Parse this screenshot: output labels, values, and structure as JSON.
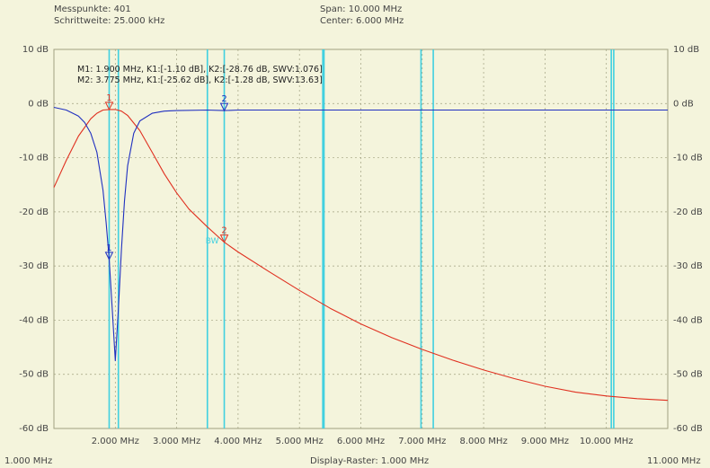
{
  "header": {
    "messpunkte_label": "Messpunkte:",
    "messpunkte_value": "401",
    "schrittweite_label": "Schrittweite:",
    "schrittweite_value": "25.000 kHz",
    "span_label": "Span:",
    "span_value": "10.000 MHz",
    "center_label": "Center:",
    "center_value": "6.000 MHz"
  },
  "bottom": {
    "start": "1.000 MHz",
    "raster": "Display-Raster: 1.000 MHz",
    "stop": "11.000 MHz"
  },
  "markers_info": [
    "M1: 1.900 MHz, K1:[-1.10 dB], K2:[-28.76 dB, SWV:1.076]",
    "M2: 3.775 MHz, K1:[-25.62 dB], K2:[-1.28 dB, SWV:13.63]"
  ],
  "colors": {
    "background": "#f4f4dc",
    "grid": "#a0a080",
    "k1": "#e03020",
    "k2": "#2030c0",
    "cyan": "#40d0e0"
  },
  "chart_data": {
    "type": "line",
    "xlim": [
      1.0,
      11.0
    ],
    "ylim": [
      -60,
      10
    ],
    "x_ticks": [
      2,
      3,
      4,
      5,
      6,
      7,
      8,
      9,
      10
    ],
    "x_tick_labels": [
      "2.000 MHz",
      "3.000 MHz",
      "4.000 MHz",
      "5.000 MHz",
      "6.000 MHz",
      "7.000 MHz",
      "8.000 MHz",
      "9.000 MHz",
      "10.000 MHz"
    ],
    "y_ticks": [
      10,
      0,
      -10,
      -20,
      -30,
      -40,
      -50,
      -60
    ],
    "y_tick_labels": [
      "10 dB",
      "0 dB",
      "-10 dB",
      "-20 dB",
      "-30 dB",
      "-40 dB",
      "-50 dB",
      "-60 dB"
    ],
    "grid": true,
    "series": [
      {
        "color": "#e03020",
        "x": [
          1.0,
          1.2,
          1.4,
          1.6,
          1.7,
          1.8,
          1.9,
          2.0,
          2.1,
          2.2,
          2.4,
          2.6,
          2.8,
          3.0,
          3.2,
          3.5,
          3.775,
          4.0,
          4.5,
          5.0,
          5.5,
          6.0,
          6.5,
          7.0,
          7.5,
          8.0,
          8.5,
          9.0,
          9.5,
          10.0,
          10.5,
          11.0
        ],
        "y": [
          -15.5,
          -10.5,
          -6.0,
          -2.8,
          -1.8,
          -1.2,
          -1.1,
          -1.1,
          -1.4,
          -2.2,
          -5.0,
          -9.0,
          -13.0,
          -16.5,
          -19.5,
          -22.8,
          -25.6,
          -27.4,
          -31.0,
          -34.5,
          -37.8,
          -40.7,
          -43.2,
          -45.4,
          -47.4,
          -49.2,
          -50.8,
          -52.2,
          -53.3,
          -54.0,
          -54.5,
          -54.8
        ]
      },
      {
        "color": "#2030c0",
        "x": [
          1.0,
          1.2,
          1.4,
          1.5,
          1.6,
          1.7,
          1.8,
          1.85,
          1.9,
          1.95,
          2.0,
          2.05,
          2.1,
          2.15,
          2.2,
          2.3,
          2.4,
          2.6,
          2.8,
          3.0,
          3.5,
          3.775,
          4.0,
          5.0,
          6.0,
          7.0,
          8.0,
          9.0,
          10.0,
          11.0
        ],
        "y": [
          -0.7,
          -1.2,
          -2.3,
          -3.5,
          -5.5,
          -9.0,
          -16.0,
          -22.0,
          -28.8,
          -38.0,
          -47.5,
          -38.0,
          -27.0,
          -18.0,
          -11.5,
          -5.5,
          -3.2,
          -1.8,
          -1.4,
          -1.3,
          -1.2,
          -1.3,
          -1.2,
          -1.2,
          -1.2,
          -1.2,
          -1.2,
          -1.2,
          -1.2,
          -1.2
        ]
      }
    ],
    "vertical_lines": [
      1.9,
      2.05,
      3.5,
      3.775,
      5.38,
      5.4,
      6.98,
      7.18,
      10.08,
      10.12
    ],
    "markers": [
      {
        "label": "1",
        "x": 1.9,
        "y": -1.1,
        "color": "#e03020"
      },
      {
        "label": "2",
        "x": 3.775,
        "y": -25.6,
        "color": "#e03020"
      },
      {
        "label": "1",
        "x": 1.9,
        "y": -28.8,
        "color": "#2030c0"
      },
      {
        "label": "2",
        "x": 3.775,
        "y": -1.3,
        "color": "#2030c0"
      }
    ],
    "annotation": {
      "text": "BW",
      "x": 3.5,
      "y": -25.3
    }
  }
}
